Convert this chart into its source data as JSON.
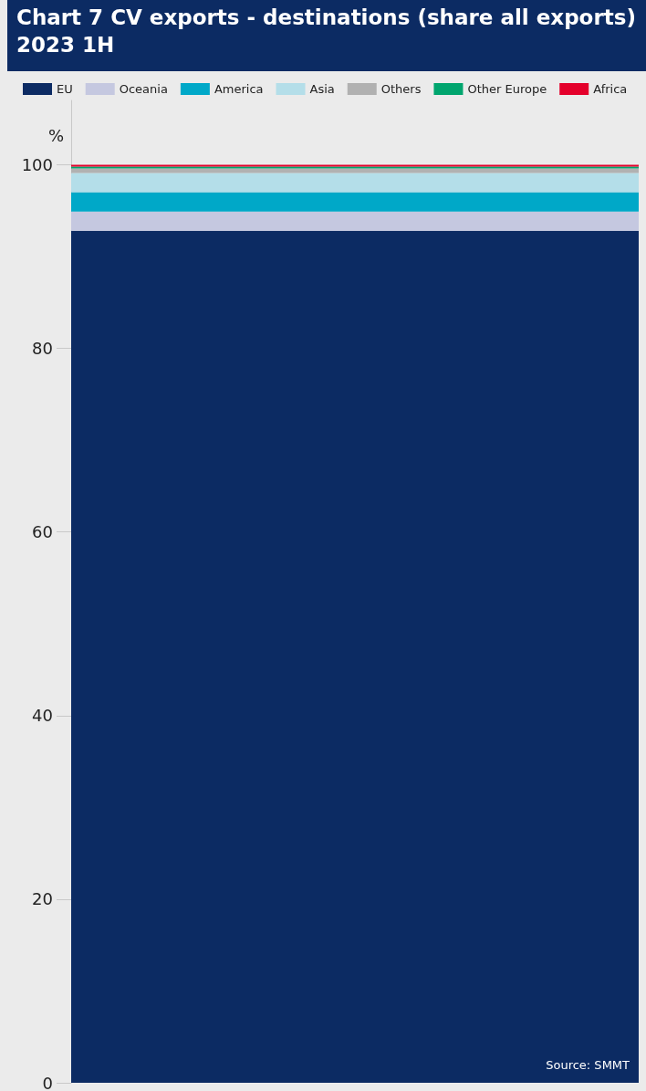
{
  "chart_data": {
    "type": "bar",
    "title": "Chart 7 CV exports - destinations (share all exports) 2023 1H",
    "ylabel": "%",
    "categories": [
      null
    ],
    "stacked": true,
    "legend": "top",
    "grid": false,
    "tick_labels": "y",
    "ylim": [
      0,
      107
    ],
    "yticks": [
      0,
      20,
      40,
      60,
      80,
      100
    ],
    "series": [
      {
        "name": "EU",
        "color": "#0c2b63",
        "values": [
          92.8
        ]
      },
      {
        "name": "Oceania",
        "color": "#c5c8e0",
        "values": [
          2.1
        ]
      },
      {
        "name": "America",
        "color": "#00a8c8",
        "values": [
          2.1
        ]
      },
      {
        "name": "Asia",
        "color": "#b4dee9",
        "values": [
          2.1
        ]
      },
      {
        "name": "Others",
        "color": "#b1b1b1",
        "values": [
          0.5
        ]
      },
      {
        "name": "Other Europe",
        "color": "#00a56e",
        "values": [
          0.2
        ]
      },
      {
        "name": "Africa",
        "color": "#e4002b",
        "values": [
          0.2
        ]
      }
    ],
    "annotations": [
      "Source: SMMT"
    ]
  }
}
